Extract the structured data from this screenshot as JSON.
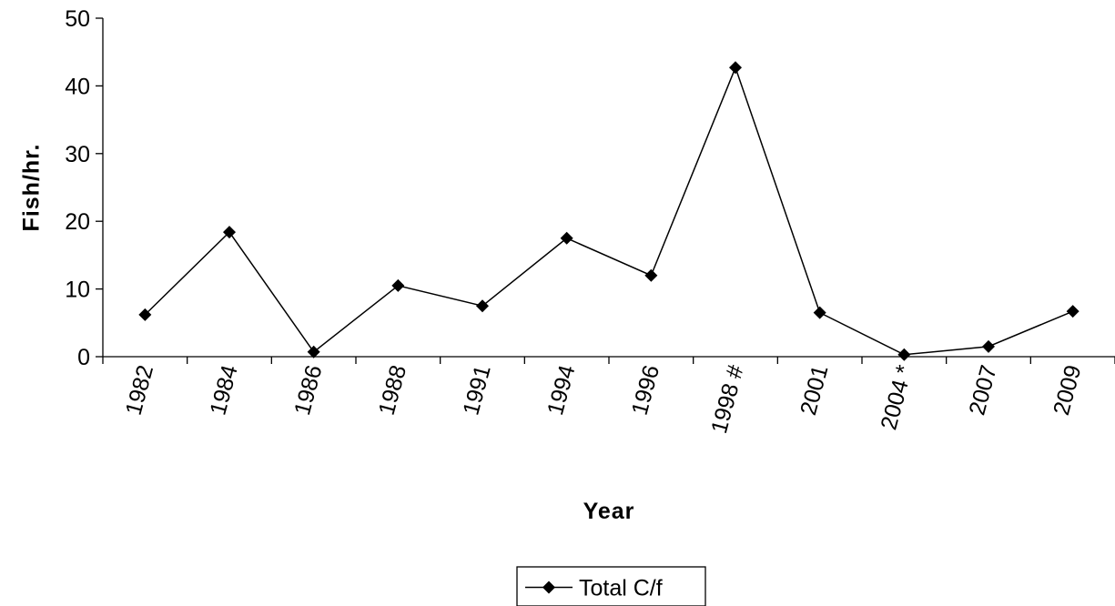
{
  "chart_data": {
    "type": "line",
    "x_label": "Year",
    "y_label": "Fish/hr.",
    "categories": [
      "1982",
      "1984",
      "1986",
      "1988",
      "1991",
      "1994",
      "1996",
      "1998 #",
      "2001",
      "2004 *",
      "2007",
      "2009"
    ],
    "series": [
      {
        "name": "Total C/f",
        "color": "#000000",
        "values": [
          6.2,
          18.4,
          0.7,
          10.5,
          7.5,
          17.5,
          12.0,
          42.7,
          6.5,
          0.3,
          1.5,
          6.7
        ]
      }
    ],
    "ylim": [
      0,
      50
    ],
    "yticks": [
      0,
      10,
      20,
      30,
      40,
      50
    ],
    "grid": false,
    "legend": "bottom"
  }
}
